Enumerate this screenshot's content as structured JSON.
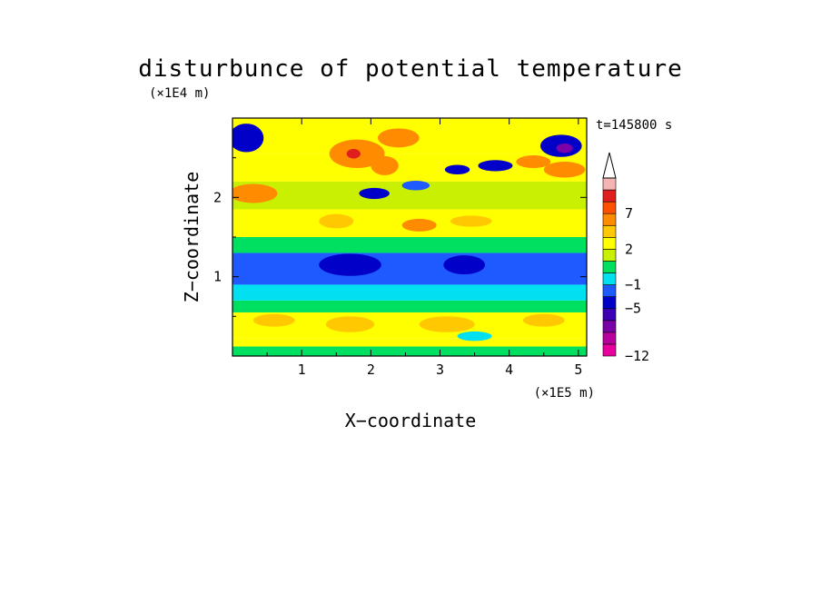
{
  "chart_data": {
    "type": "heatmap",
    "title": "disturbunce of potential temperature",
    "xlabel": "X−coordinate",
    "ylabel": "Z−coordinate",
    "x_unit": "(×1E5 m)",
    "y_unit": "(×1E4 m)",
    "time_label": "t=145800 s",
    "xlim": [
      0,
      5.12
    ],
    "ylim": [
      0,
      3.0
    ],
    "x_ticks": [
      "1",
      "2",
      "3",
      "4",
      "5"
    ],
    "y_ticks": [
      "1",
      "2"
    ],
    "colorbar": {
      "levels": [
        -12,
        -10,
        -8,
        -6,
        -5,
        -3,
        -1,
        0,
        1,
        2,
        4,
        5,
        7,
        8,
        10
      ],
      "labels": [
        "−12",
        "−5",
        "−1",
        "2",
        "7"
      ],
      "colors": [
        "#e8009c",
        "#b8009c",
        "#7a00a8",
        "#3e00b4",
        "#0000c8",
        "#1e5aff",
        "#00e0f0",
        "#00e060",
        "#c8f000",
        "#ffff00",
        "#ffc800",
        "#ff8c00",
        "#ff5000",
        "#e01e1e",
        "#f4b4b4"
      ],
      "extend": "max"
    },
    "bands": [
      {
        "z": [
          0.0,
          0.12
        ],
        "value": 0.5
      },
      {
        "z": [
          0.12,
          0.22
        ],
        "value": 2.5
      },
      {
        "z": [
          0.22,
          0.55
        ],
        "value": 3.0
      },
      {
        "z": [
          0.55,
          0.7
        ],
        "value": 0.5
      },
      {
        "z": [
          0.7,
          0.9
        ],
        "value": -0.5
      },
      {
        "z": [
          0.9,
          1.3
        ],
        "value": -2.0
      },
      {
        "z": [
          1.3,
          1.5
        ],
        "value": 0.5
      },
      {
        "z": [
          1.5,
          1.85
        ],
        "value": 3.0
      },
      {
        "z": [
          1.85,
          2.2
        ],
        "value": 1.5
      },
      {
        "z": [
          2.2,
          2.55
        ],
        "value": 2.0
      },
      {
        "z": [
          2.55,
          3.0
        ],
        "value": 3.0
      }
    ],
    "features": [
      {
        "x": 0.3,
        "z": 2.05,
        "rx": 0.35,
        "rz": 0.12,
        "value": 6
      },
      {
        "x": 1.8,
        "z": 2.55,
        "rx": 0.4,
        "rz": 0.18,
        "value": 6
      },
      {
        "x": 1.75,
        "z": 2.55,
        "rx": 0.1,
        "rz": 0.06,
        "value": 8
      },
      {
        "x": 2.2,
        "z": 2.4,
        "rx": 0.2,
        "rz": 0.12,
        "value": 5
      },
      {
        "x": 2.4,
        "z": 2.75,
        "rx": 0.3,
        "rz": 0.12,
        "value": 5
      },
      {
        "x": 4.35,
        "z": 2.45,
        "rx": 0.25,
        "rz": 0.08,
        "value": 6
      },
      {
        "x": 4.8,
        "z": 2.35,
        "rx": 0.3,
        "rz": 0.1,
        "value": 5
      },
      {
        "x": 2.7,
        "z": 1.65,
        "rx": 0.25,
        "rz": 0.08,
        "value": 5
      },
      {
        "x": 3.45,
        "z": 1.7,
        "rx": 0.3,
        "rz": 0.07,
        "value": 4.5
      },
      {
        "x": 1.5,
        "z": 1.7,
        "rx": 0.25,
        "rz": 0.09,
        "value": 4.5
      },
      {
        "x": 0.2,
        "z": 2.75,
        "rx": 0.25,
        "rz": 0.18,
        "value": -4
      },
      {
        "x": 4.75,
        "z": 2.65,
        "rx": 0.3,
        "rz": 0.14,
        "value": -5
      },
      {
        "x": 4.8,
        "z": 2.62,
        "rx": 0.12,
        "rz": 0.06,
        "value": -7
      },
      {
        "x": 2.05,
        "z": 2.05,
        "rx": 0.22,
        "rz": 0.07,
        "value": -4
      },
      {
        "x": 2.65,
        "z": 2.15,
        "rx": 0.2,
        "rz": 0.06,
        "value": -3
      },
      {
        "x": 3.25,
        "z": 2.35,
        "rx": 0.18,
        "rz": 0.06,
        "value": -4
      },
      {
        "x": 3.8,
        "z": 2.4,
        "rx": 0.25,
        "rz": 0.07,
        "value": -4
      },
      {
        "x": 1.7,
        "z": 1.15,
        "rx": 0.45,
        "rz": 0.14,
        "value": -4
      },
      {
        "x": 3.35,
        "z": 1.15,
        "rx": 0.3,
        "rz": 0.12,
        "value": -4
      },
      {
        "x": 0.9,
        "z": 1.2,
        "rx": 0.3,
        "rz": 0.08,
        "value": -3
      },
      {
        "x": 4.3,
        "z": 1.05,
        "rx": 0.3,
        "rz": 0.06,
        "value": -2
      },
      {
        "x": 1.7,
        "z": 0.4,
        "rx": 0.35,
        "rz": 0.1,
        "value": 4.5
      },
      {
        "x": 3.1,
        "z": 0.4,
        "rx": 0.4,
        "rz": 0.1,
        "value": 4.5
      },
      {
        "x": 4.5,
        "z": 0.45,
        "rx": 0.3,
        "rz": 0.08,
        "value": 4.5
      },
      {
        "x": 0.6,
        "z": 0.45,
        "rx": 0.3,
        "rz": 0.08,
        "value": 4.5
      },
      {
        "x": 3.5,
        "z": 0.25,
        "rx": 0.25,
        "rz": 0.06,
        "value": -0.5
      }
    ]
  }
}
